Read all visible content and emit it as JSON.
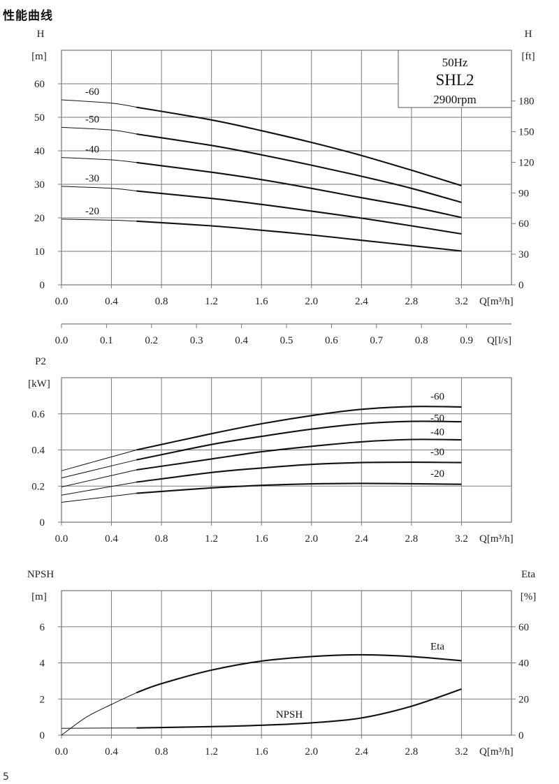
{
  "page": {
    "title": "性能曲线",
    "number": "5"
  },
  "chart_data": [
    {
      "id": "head",
      "type": "line",
      "x_label": "Q[m³/h]",
      "x_ticks": [
        "0.0",
        "0.4",
        "0.8",
        "1.2",
        "1.6",
        "2.0",
        "2.4",
        "2.8",
        "3.2"
      ],
      "xlim": [
        0,
        3.6
      ],
      "y_label_left": "H",
      "y_unit_left": "[m]",
      "y_ticks_left": [
        "0",
        "10",
        "20",
        "30",
        "40",
        "50",
        "60"
      ],
      "ylim_left": [
        0,
        70
      ],
      "y_label_right": "H",
      "y_unit_right": "[ft]",
      "y_ticks_right": [
        "0",
        "30",
        "60",
        "90",
        "120",
        "150",
        "180"
      ],
      "secondary_x_label": "Q[l/s]",
      "secondary_x_ticks": [
        "0.0",
        "0.1",
        "0.2",
        "0.3",
        "0.4",
        "0.5",
        "0.6",
        "0.7",
        "0.8",
        "0.9"
      ],
      "grid": true,
      "info_box": {
        "frequency": "50Hz",
        "model": "SHL2",
        "speed": "2900rpm"
      },
      "series": [
        {
          "name": "-60",
          "points": [
            [
              0,
              55.2
            ],
            [
              0.4,
              54.2
            ],
            [
              0.6,
              53.0
            ],
            [
              1.2,
              49.2
            ],
            [
              1.6,
              46.0
            ],
            [
              2.0,
              42.5
            ],
            [
              2.4,
              38.6
            ],
            [
              2.8,
              34.2
            ],
            [
              3.2,
              29.6
            ]
          ]
        },
        {
          "name": "-50",
          "points": [
            [
              0,
              47.0
            ],
            [
              0.4,
              46.2
            ],
            [
              0.6,
              45.0
            ],
            [
              1.2,
              41.6
            ],
            [
              1.6,
              38.8
            ],
            [
              2.0,
              35.7
            ],
            [
              2.4,
              32.4
            ],
            [
              2.8,
              28.8
            ],
            [
              3.2,
              24.6
            ]
          ]
        },
        {
          "name": "-40",
          "points": [
            [
              0,
              38.0
            ],
            [
              0.4,
              37.3
            ],
            [
              0.6,
              36.5
            ],
            [
              1.2,
              33.6
            ],
            [
              1.6,
              31.4
            ],
            [
              2.0,
              28.8
            ],
            [
              2.4,
              26.0
            ],
            [
              2.8,
              23.3
            ],
            [
              3.2,
              20.1
            ]
          ]
        },
        {
          "name": "-30",
          "points": [
            [
              0,
              29.4
            ],
            [
              0.4,
              28.8
            ],
            [
              0.6,
              28.0
            ],
            [
              1.2,
              25.8
            ],
            [
              1.6,
              24.0
            ],
            [
              2.0,
              22.0
            ],
            [
              2.4,
              19.9
            ],
            [
              2.8,
              17.6
            ],
            [
              3.2,
              15.2
            ]
          ]
        },
        {
          "name": "-20",
          "points": [
            [
              0,
              19.6
            ],
            [
              0.4,
              19.3
            ],
            [
              0.6,
              19.0
            ],
            [
              1.2,
              17.6
            ],
            [
              1.6,
              16.3
            ],
            [
              2.0,
              14.9
            ],
            [
              2.4,
              13.3
            ],
            [
              2.8,
              11.7
            ],
            [
              3.2,
              10.1
            ]
          ]
        }
      ]
    },
    {
      "id": "power",
      "type": "line",
      "x_label": "Q[m³/h]",
      "x_ticks": [
        "0.0",
        "0.4",
        "0.8",
        "1.2",
        "1.6",
        "2.0",
        "2.4",
        "2.8",
        "3.2"
      ],
      "xlim": [
        0,
        3.6
      ],
      "y_label_left": "P2",
      "y_unit_left": "[kW]",
      "y_ticks_left": [
        "0",
        "0.2",
        "0.4",
        "0.6"
      ],
      "ylim_left": [
        0,
        0.8
      ],
      "grid": true,
      "series": [
        {
          "name": "-60",
          "points": [
            [
              0,
              0.285
            ],
            [
              0.6,
              0.4
            ],
            [
              1.2,
              0.49
            ],
            [
              1.6,
              0.545
            ],
            [
              2.0,
              0.59
            ],
            [
              2.4,
              0.625
            ],
            [
              2.8,
              0.64
            ],
            [
              3.2,
              0.638
            ]
          ]
        },
        {
          "name": "-50",
          "points": [
            [
              0,
              0.245
            ],
            [
              0.6,
              0.345
            ],
            [
              1.2,
              0.43
            ],
            [
              1.6,
              0.475
            ],
            [
              2.0,
              0.515
            ],
            [
              2.4,
              0.545
            ],
            [
              2.8,
              0.558
            ],
            [
              3.2,
              0.556
            ]
          ]
        },
        {
          "name": "-40",
          "points": [
            [
              0,
              0.195
            ],
            [
              0.6,
              0.29
            ],
            [
              1.2,
              0.35
            ],
            [
              1.6,
              0.39
            ],
            [
              2.0,
              0.42
            ],
            [
              2.4,
              0.445
            ],
            [
              2.8,
              0.458
            ],
            [
              3.2,
              0.456
            ]
          ]
        },
        {
          "name": "-30",
          "points": [
            [
              0,
              0.15
            ],
            [
              0.6,
              0.222
            ],
            [
              1.2,
              0.275
            ],
            [
              1.6,
              0.3
            ],
            [
              2.0,
              0.32
            ],
            [
              2.4,
              0.33
            ],
            [
              2.8,
              0.332
            ],
            [
              3.2,
              0.33
            ]
          ]
        },
        {
          "name": "-20",
          "points": [
            [
              0,
              0.11
            ],
            [
              0.6,
              0.16
            ],
            [
              1.2,
              0.19
            ],
            [
              1.6,
              0.204
            ],
            [
              2.0,
              0.212
            ],
            [
              2.4,
              0.215
            ],
            [
              2.8,
              0.213
            ],
            [
              3.2,
              0.21
            ]
          ]
        }
      ]
    },
    {
      "id": "npsh-eta",
      "type": "line",
      "x_label": "Q[m³/h]",
      "x_ticks": [
        "0.0",
        "0.4",
        "0.8",
        "1.2",
        "1.6",
        "2.0",
        "2.4",
        "2.8",
        "3.2"
      ],
      "xlim": [
        0,
        3.6
      ],
      "y_label_left": "NPSH",
      "y_unit_left": "[m]",
      "y_ticks_left": [
        "0",
        "2",
        "4",
        "6"
      ],
      "ylim_left": [
        0,
        8
      ],
      "y_label_right": "Eta",
      "y_unit_right": "[%]",
      "y_ticks_right": [
        "0",
        "20",
        "40",
        "60"
      ],
      "ylim_right": [
        0,
        80
      ],
      "grid": true,
      "series": [
        {
          "name": "Eta",
          "axis": "right",
          "points": [
            [
              0,
              0
            ],
            [
              0.2,
              10
            ],
            [
              0.4,
              17
            ],
            [
              0.6,
              23.5
            ],
            [
              0.8,
              28.5
            ],
            [
              1.2,
              36.0
            ],
            [
              1.6,
              41.0
            ],
            [
              2.0,
              43.5
            ],
            [
              2.4,
              44.5
            ],
            [
              2.8,
              43.5
            ],
            [
              3.2,
              41.2
            ]
          ]
        },
        {
          "name": "NPSH",
          "axis": "left",
          "points": [
            [
              0,
              0.38
            ],
            [
              0.6,
              0.4
            ],
            [
              1.2,
              0.47
            ],
            [
              1.6,
              0.55
            ],
            [
              2.0,
              0.68
            ],
            [
              2.4,
              0.95
            ],
            [
              2.8,
              1.6
            ],
            [
              3.2,
              2.55
            ]
          ]
        }
      ]
    }
  ]
}
